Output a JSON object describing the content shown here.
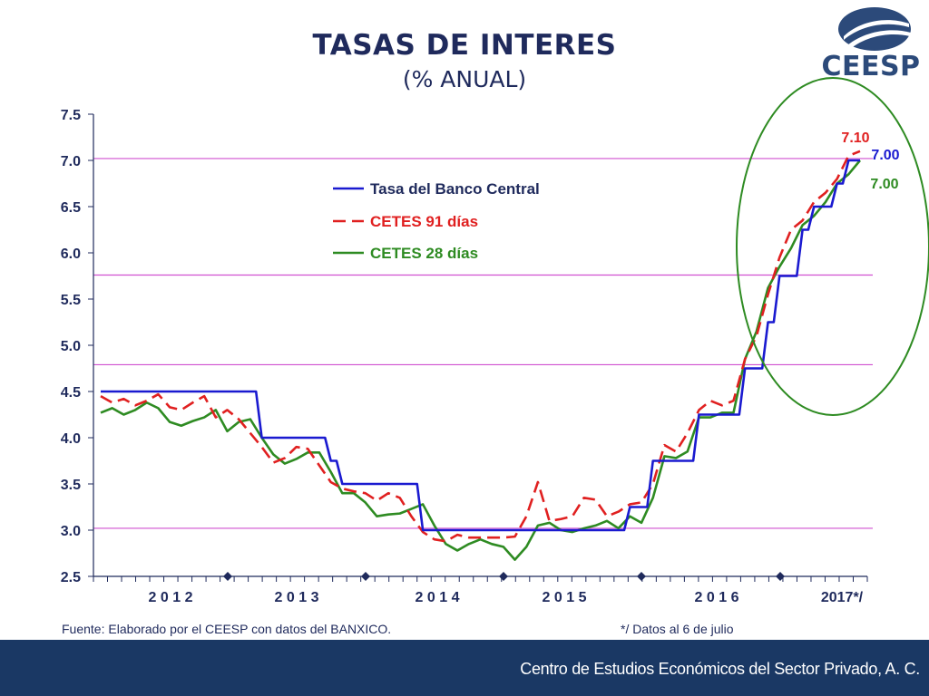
{
  "header": {
    "title": "TASAS DE INTERES",
    "subtitle": "(% ANUAL)",
    "logo_text": "CEESP"
  },
  "footer": {
    "source": "Fuente: Elaborado por el CEESP con datos del BANXICO.",
    "note": "*/ Datos al 6 de julio",
    "org": "Centro de Estudios Económicos del Sector Privado, A. C."
  },
  "colors": {
    "title": "#1f2a5c",
    "banco": "#1a1ad0",
    "cetes91": "#e02020",
    "cetes28": "#2e8b22",
    "reference": "#d050d0",
    "footer_bg": "#1a3864",
    "ellipse": "#2e8b22"
  },
  "chart_data": {
    "type": "line",
    "title": "TASAS DE INTERES",
    "subtitle": "(% ANUAL)",
    "ylim": [
      2.5,
      7.5
    ],
    "yticks": [
      "2.5",
      "3.0",
      "3.5",
      "4.0",
      "4.5",
      "5.0",
      "5.5",
      "6.0",
      "6.5",
      "7.0",
      "7.5"
    ],
    "year_labels": [
      "2 0 1 2",
      "2 0 1 3",
      "2 0 1 4",
      "2 0 1 5",
      "2 0 1 6",
      "2017*/"
    ],
    "x_count": 67,
    "legend": {
      "position": "upper-left-center"
    },
    "reference_lines": [
      7.02,
      5.76,
      4.79,
      3.02
    ],
    "series": [
      {
        "name": "Tasa del Banco Central",
        "style": "solid",
        "values": [
          4.5,
          4.5,
          4.5,
          4.5,
          4.5,
          4.5,
          4.5,
          4.5,
          4.5,
          4.5,
          4.5,
          4.5,
          4.5,
          4.5,
          4.0,
          4.0,
          4.0,
          4.0,
          4.0,
          4.0,
          3.75,
          3.5,
          3.5,
          3.5,
          3.5,
          3.5,
          3.5,
          3.5,
          3.0,
          3.0,
          3.0,
          3.0,
          3.0,
          3.0,
          3.0,
          3.0,
          3.0,
          3.0,
          3.0,
          3.0,
          3.0,
          3.0,
          3.0,
          3.0,
          3.0,
          3.0,
          3.25,
          3.25,
          3.75,
          3.75,
          3.75,
          3.75,
          4.25,
          4.25,
          4.25,
          4.25,
          4.75,
          4.75,
          5.25,
          5.75,
          5.75,
          6.25,
          6.5,
          6.5,
          6.75,
          7.0,
          7.0
        ]
      },
      {
        "name": "CETES 91 días",
        "style": "dashed",
        "values": [
          4.45,
          4.38,
          4.42,
          4.35,
          4.4,
          4.47,
          4.33,
          4.3,
          4.38,
          4.45,
          4.22,
          4.3,
          4.2,
          4.05,
          3.9,
          3.73,
          3.78,
          3.9,
          3.88,
          3.7,
          3.52,
          3.45,
          3.42,
          3.4,
          3.32,
          3.4,
          3.35,
          3.15,
          2.98,
          2.9,
          2.88,
          2.95,
          2.92,
          2.92,
          2.92,
          2.92,
          2.93,
          3.15,
          3.52,
          3.1,
          3.12,
          3.15,
          3.35,
          3.33,
          3.15,
          3.2,
          3.28,
          3.3,
          3.5,
          3.92,
          3.85,
          4.05,
          4.3,
          4.4,
          4.35,
          4.4,
          4.85,
          5.1,
          5.55,
          5.95,
          6.25,
          6.35,
          6.55,
          6.65,
          6.8,
          7.05,
          7.1
        ]
      },
      {
        "name": "CETES 28 días",
        "style": "solid",
        "values": [
          4.27,
          4.32,
          4.25,
          4.3,
          4.38,
          4.32,
          4.17,
          4.13,
          4.18,
          4.22,
          4.3,
          4.07,
          4.17,
          4.2,
          4.0,
          3.82,
          3.72,
          3.77,
          3.84,
          3.84,
          3.63,
          3.4,
          3.4,
          3.3,
          3.15,
          3.17,
          3.18,
          3.23,
          3.28,
          3.05,
          2.85,
          2.78,
          2.85,
          2.9,
          2.85,
          2.82,
          2.68,
          2.82,
          3.05,
          3.08,
          3.0,
          2.98,
          3.02,
          3.05,
          3.1,
          3.02,
          3.15,
          3.08,
          3.35,
          3.8,
          3.78,
          3.85,
          4.22,
          4.22,
          4.27,
          4.27,
          4.85,
          5.15,
          5.62,
          5.85,
          6.05,
          6.3,
          6.4,
          6.55,
          6.75,
          6.85,
          7.0
        ]
      }
    ],
    "annotations": [
      {
        "text": "7.10",
        "series": "CETES 91 días"
      },
      {
        "text": "7.00",
        "series": "Tasa del Banco Central"
      },
      {
        "text": "7.00",
        "series": "CETES 28 días"
      }
    ]
  }
}
